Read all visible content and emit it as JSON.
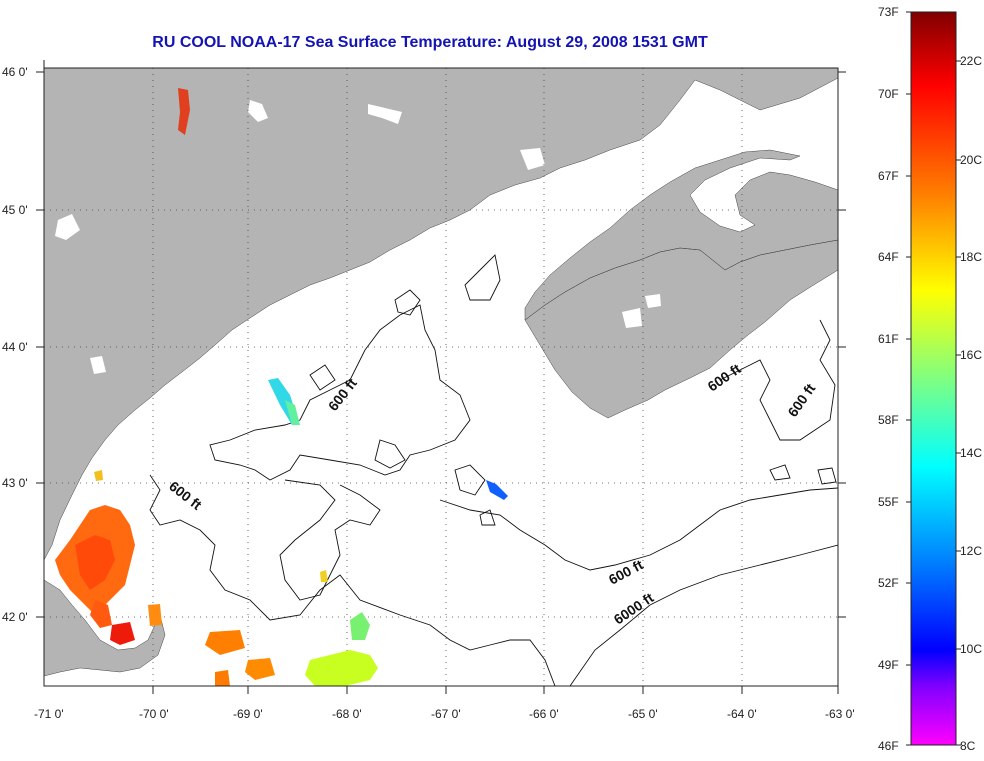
{
  "title": "RU COOL  NOAA-17  Sea Surface Temperature:  August 29, 2008 1531 GMT",
  "map": {
    "lon_labels": [
      "-71 0'",
      "-70 0'",
      "-69 0'",
      "-68 0'",
      "-67 0'",
      "-66 0'",
      "-65 0'",
      "-64 0'",
      "-63 0'"
    ],
    "lat_labels": [
      "46 0'",
      "45 0'",
      "44 0'",
      "43 0'",
      "42 0'"
    ],
    "land_color": "#b4b4b4",
    "water_color": "#ffffff",
    "grid": "dotted",
    "contour_labels": [
      "600 ft",
      "600 ft",
      "600 ft",
      "600 ft",
      "600 ft",
      "6000 ft"
    ]
  },
  "colorbar": {
    "fahrenheit_labels": [
      "73F",
      "70F",
      "67F",
      "64F",
      "61F",
      "58F",
      "55F",
      "52F",
      "49F",
      "46F"
    ],
    "celsius_labels": [
      "22C",
      "20C",
      "18C",
      "16C",
      "14C",
      "12C",
      "10C",
      "8C"
    ],
    "colors": [
      "#800000",
      "#ff0000",
      "#ff8000",
      "#ffff00",
      "#80ff80",
      "#00ffff",
      "#0080ff",
      "#0000ff",
      "#8000ff",
      "#ff00ff"
    ]
  }
}
